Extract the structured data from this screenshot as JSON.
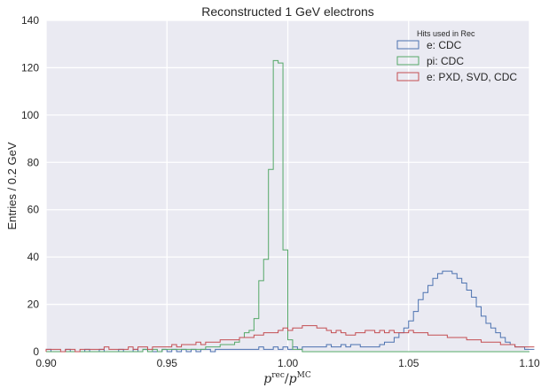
{
  "chart_data": {
    "type": "histogram-step",
    "title": "Reconstructed 1 GeV electrons",
    "xlabel_main": "p",
    "xlabel_sup_num": "rec",
    "xlabel_sep": "/",
    "xlabel_sup_den": "MC",
    "ylabel": "Entries / 0.2 GeV",
    "xlim": [
      0.9,
      1.1
    ],
    "ylim": [
      0,
      140
    ],
    "x_ticks": [
      0.9,
      0.95,
      1.0,
      1.05,
      1.1
    ],
    "x_tick_labels": [
      "0.90",
      "0.95",
      "1.00",
      "1.05",
      "1.10"
    ],
    "y_ticks": [
      0,
      20,
      40,
      60,
      80,
      100,
      120,
      140
    ],
    "y_tick_labels": [
      "0",
      "20",
      "40",
      "60",
      "80",
      "100",
      "120",
      "140"
    ],
    "grid": true,
    "background": "#eaeaf2",
    "legend": {
      "title": "Hits used in Rec",
      "placement": "top-right"
    },
    "bin_edges_start": 0.9,
    "bin_width": 0.002,
    "series": [
      {
        "name": "e: CDC",
        "color": "#4c72b0",
        "values": [
          1,
          0,
          0,
          0,
          1,
          0,
          0,
          0,
          1,
          0,
          0,
          1,
          0,
          0,
          0,
          1,
          0,
          0,
          1,
          0,
          1,
          0,
          0,
          0,
          1,
          0,
          1,
          0,
          1,
          0,
          1,
          0,
          1,
          1,
          0,
          1,
          1,
          1,
          1,
          1,
          1,
          1,
          1,
          1,
          2,
          1,
          1,
          2,
          1,
          2,
          1,
          2,
          1,
          2,
          2,
          2,
          2,
          2,
          3,
          2,
          2,
          3,
          2,
          3,
          3,
          2,
          2,
          2,
          2,
          3,
          4,
          4,
          6,
          8,
          10,
          13,
          17,
          22,
          25,
          28,
          31,
          33,
          34,
          34,
          33,
          31,
          29,
          26,
          23,
          19,
          15,
          12,
          10,
          8,
          6,
          4,
          3,
          2,
          2,
          1,
          1
        ]
      },
      {
        "name": "pi: CDC",
        "color": "#55a868",
        "values": [
          0,
          0,
          0,
          0,
          0,
          0,
          0,
          0,
          0,
          0,
          0,
          0,
          0,
          0,
          0,
          0,
          0,
          0,
          0,
          0,
          1,
          0,
          1,
          0,
          1,
          1,
          1,
          1,
          1,
          1,
          1,
          1,
          1,
          2,
          2,
          2,
          3,
          3,
          3,
          4,
          6,
          8,
          9,
          14,
          30,
          39,
          77,
          123,
          122,
          43,
          5,
          1,
          1,
          0,
          0,
          0,
          0,
          0,
          0,
          0,
          0,
          0,
          0,
          0,
          0,
          0,
          0,
          0,
          0,
          0,
          0,
          0,
          0,
          0,
          0,
          0,
          0,
          0,
          0,
          0,
          0,
          0,
          0,
          0,
          0,
          0,
          0,
          0,
          0,
          0,
          0,
          0,
          0,
          0,
          0,
          0,
          0,
          0,
          0,
          0
        ]
      },
      {
        "name": "e: PXD, SVD, CDC",
        "color": "#c44e52",
        "values": [
          1,
          1,
          1,
          0,
          1,
          1,
          0,
          1,
          1,
          1,
          1,
          1,
          2,
          1,
          1,
          1,
          1,
          2,
          1,
          2,
          2,
          1,
          2,
          2,
          2,
          2,
          3,
          2,
          3,
          3,
          3,
          4,
          3,
          4,
          4,
          4,
          5,
          5,
          5,
          5,
          6,
          6,
          6,
          7,
          7,
          8,
          8,
          8,
          9,
          10,
          9,
          10,
          10,
          11,
          11,
          11,
          10,
          10,
          9,
          8,
          9,
          8,
          7,
          7,
          8,
          8,
          9,
          9,
          8,
          9,
          8,
          9,
          8,
          8,
          8,
          9,
          8,
          8,
          8,
          7,
          7,
          7,
          7,
          6,
          6,
          6,
          6,
          5,
          5,
          5,
          4,
          4,
          4,
          4,
          3,
          3,
          3,
          2,
          2,
          2,
          2
        ]
      }
    ]
  }
}
